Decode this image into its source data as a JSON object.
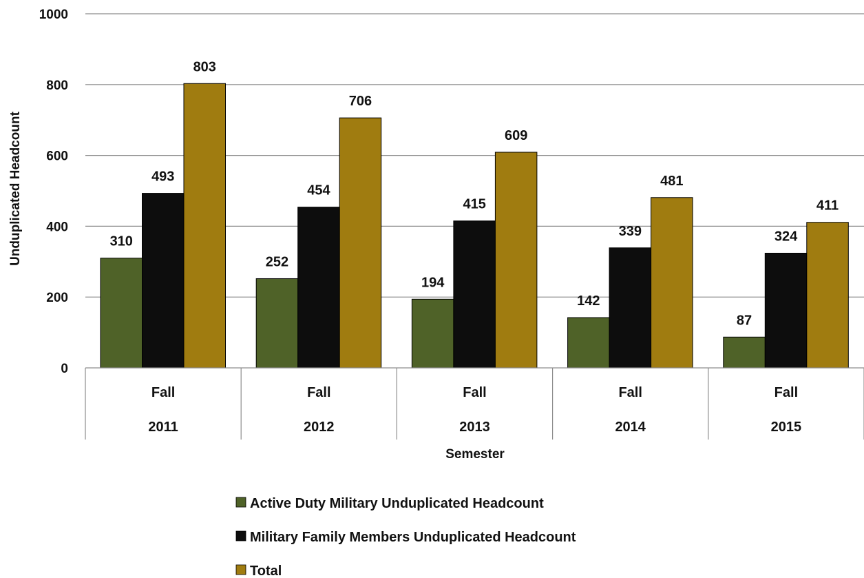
{
  "chart_data": {
    "type": "bar",
    "title": "",
    "xlabel": "Semester",
    "ylabel": "Unduplicated Headcount",
    "ylim": [
      0,
      1000
    ],
    "yticks": [
      0,
      200,
      400,
      600,
      800,
      1000
    ],
    "grid": true,
    "legend_position": "bottom",
    "categories": [
      {
        "term": "Fall",
        "year": "2011"
      },
      {
        "term": "Fall",
        "year": "2012"
      },
      {
        "term": "Fall",
        "year": "2013"
      },
      {
        "term": "Fall",
        "year": "2014"
      },
      {
        "term": "Fall",
        "year": "2015"
      }
    ],
    "series": [
      {
        "name": "Active Duty Military Unduplicated Headcount",
        "color": "#4f6228",
        "values": [
          310,
          252,
          194,
          142,
          87
        ]
      },
      {
        "name": "Military Family Members Unduplicated Headcount",
        "color": "#0d0d0d",
        "values": [
          493,
          454,
          415,
          339,
          324
        ]
      },
      {
        "name": "Total",
        "color": "#a07c10",
        "values": [
          803,
          706,
          609,
          481,
          411
        ]
      }
    ]
  }
}
